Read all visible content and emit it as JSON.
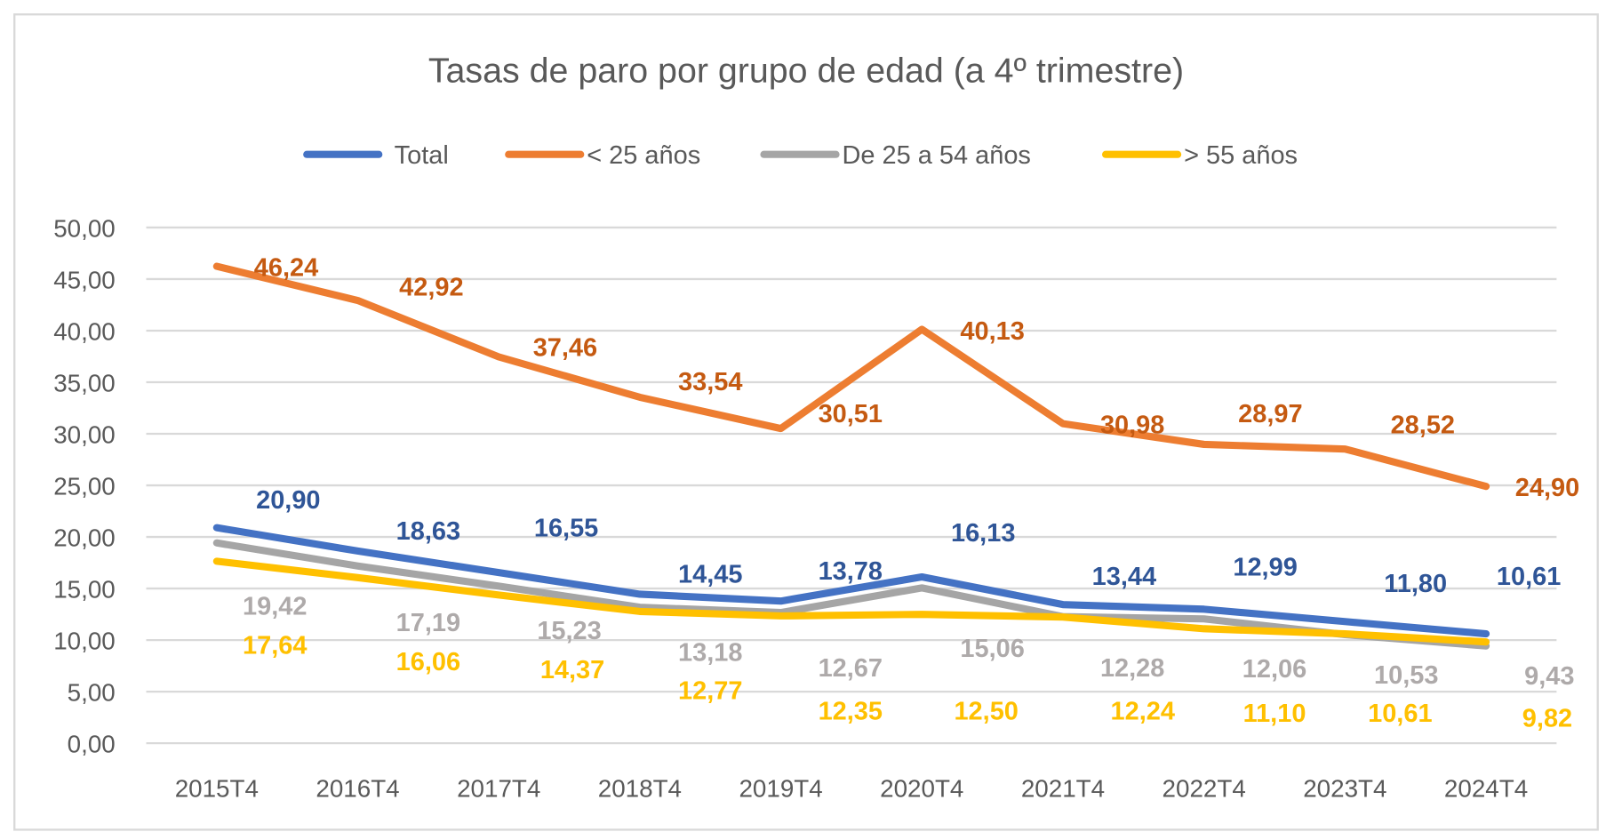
{
  "chart_data": {
    "type": "line",
    "title": "Tasas de paro por grupo de edad (a 4º trimestre)",
    "xlabel": "",
    "ylabel": "",
    "categories": [
      "2015T4",
      "2016T4",
      "2017T4",
      "2018T4",
      "2019T4",
      "2020T4",
      "2021T4",
      "2022T4",
      "2023T4",
      "2024T4"
    ],
    "ylim": [
      0,
      50
    ],
    "yticks": [
      "0,00",
      "5,00",
      "10,00",
      "15,00",
      "20,00",
      "25,00",
      "30,00",
      "35,00",
      "40,00",
      "45,00",
      "50,00"
    ],
    "grid": true,
    "legend_position": "top",
    "series": [
      {
        "name": "Total",
        "color": "#4472C4",
        "label_color": "#2F5597",
        "values": [
          20.9,
          18.63,
          16.55,
          14.45,
          13.78,
          16.13,
          13.44,
          12.99,
          11.8,
          10.61
        ],
        "labels": [
          "20,90",
          "18,63",
          "16,55",
          "14,45",
          "13,78",
          "16,13",
          "13,44",
          "12,99",
          "11,80",
          "10,61"
        ]
      },
      {
        "name": "< 25 años",
        "color": "#ED7D31",
        "label_color": "#C55A11",
        "values": [
          46.24,
          42.92,
          37.46,
          33.54,
          30.51,
          40.13,
          30.98,
          28.97,
          28.52,
          24.9
        ],
        "labels": [
          "46,24",
          "42,92",
          "37,46",
          "33,54",
          "30,51",
          "40,13",
          "30,98",
          "28,97",
          "28,52",
          "24,90"
        ]
      },
      {
        "name": "De 25 a 54 años",
        "color": "#A5A5A5",
        "label_color": "#AEAAAA",
        "values": [
          19.42,
          17.19,
          15.23,
          13.18,
          12.67,
          15.06,
          12.28,
          12.06,
          10.53,
          9.43
        ],
        "labels": [
          "19,42",
          "17,19",
          "15,23",
          "13,18",
          "12,67",
          "15,06",
          "12,28",
          "12,06",
          "10,53",
          "9,43"
        ]
      },
      {
        "name": "> 55 años",
        "color": "#FFC000",
        "label_color": "#FFC000",
        "values": [
          17.64,
          16.06,
          14.37,
          12.77,
          12.35,
          12.5,
          12.24,
          11.1,
          10.61,
          9.82
        ],
        "labels": [
          "17,64",
          "16,06",
          "14,37",
          "12,77",
          "12,35",
          "12,50",
          "12,24",
          "11,10",
          "10,61",
          "9,82"
        ]
      }
    ]
  }
}
